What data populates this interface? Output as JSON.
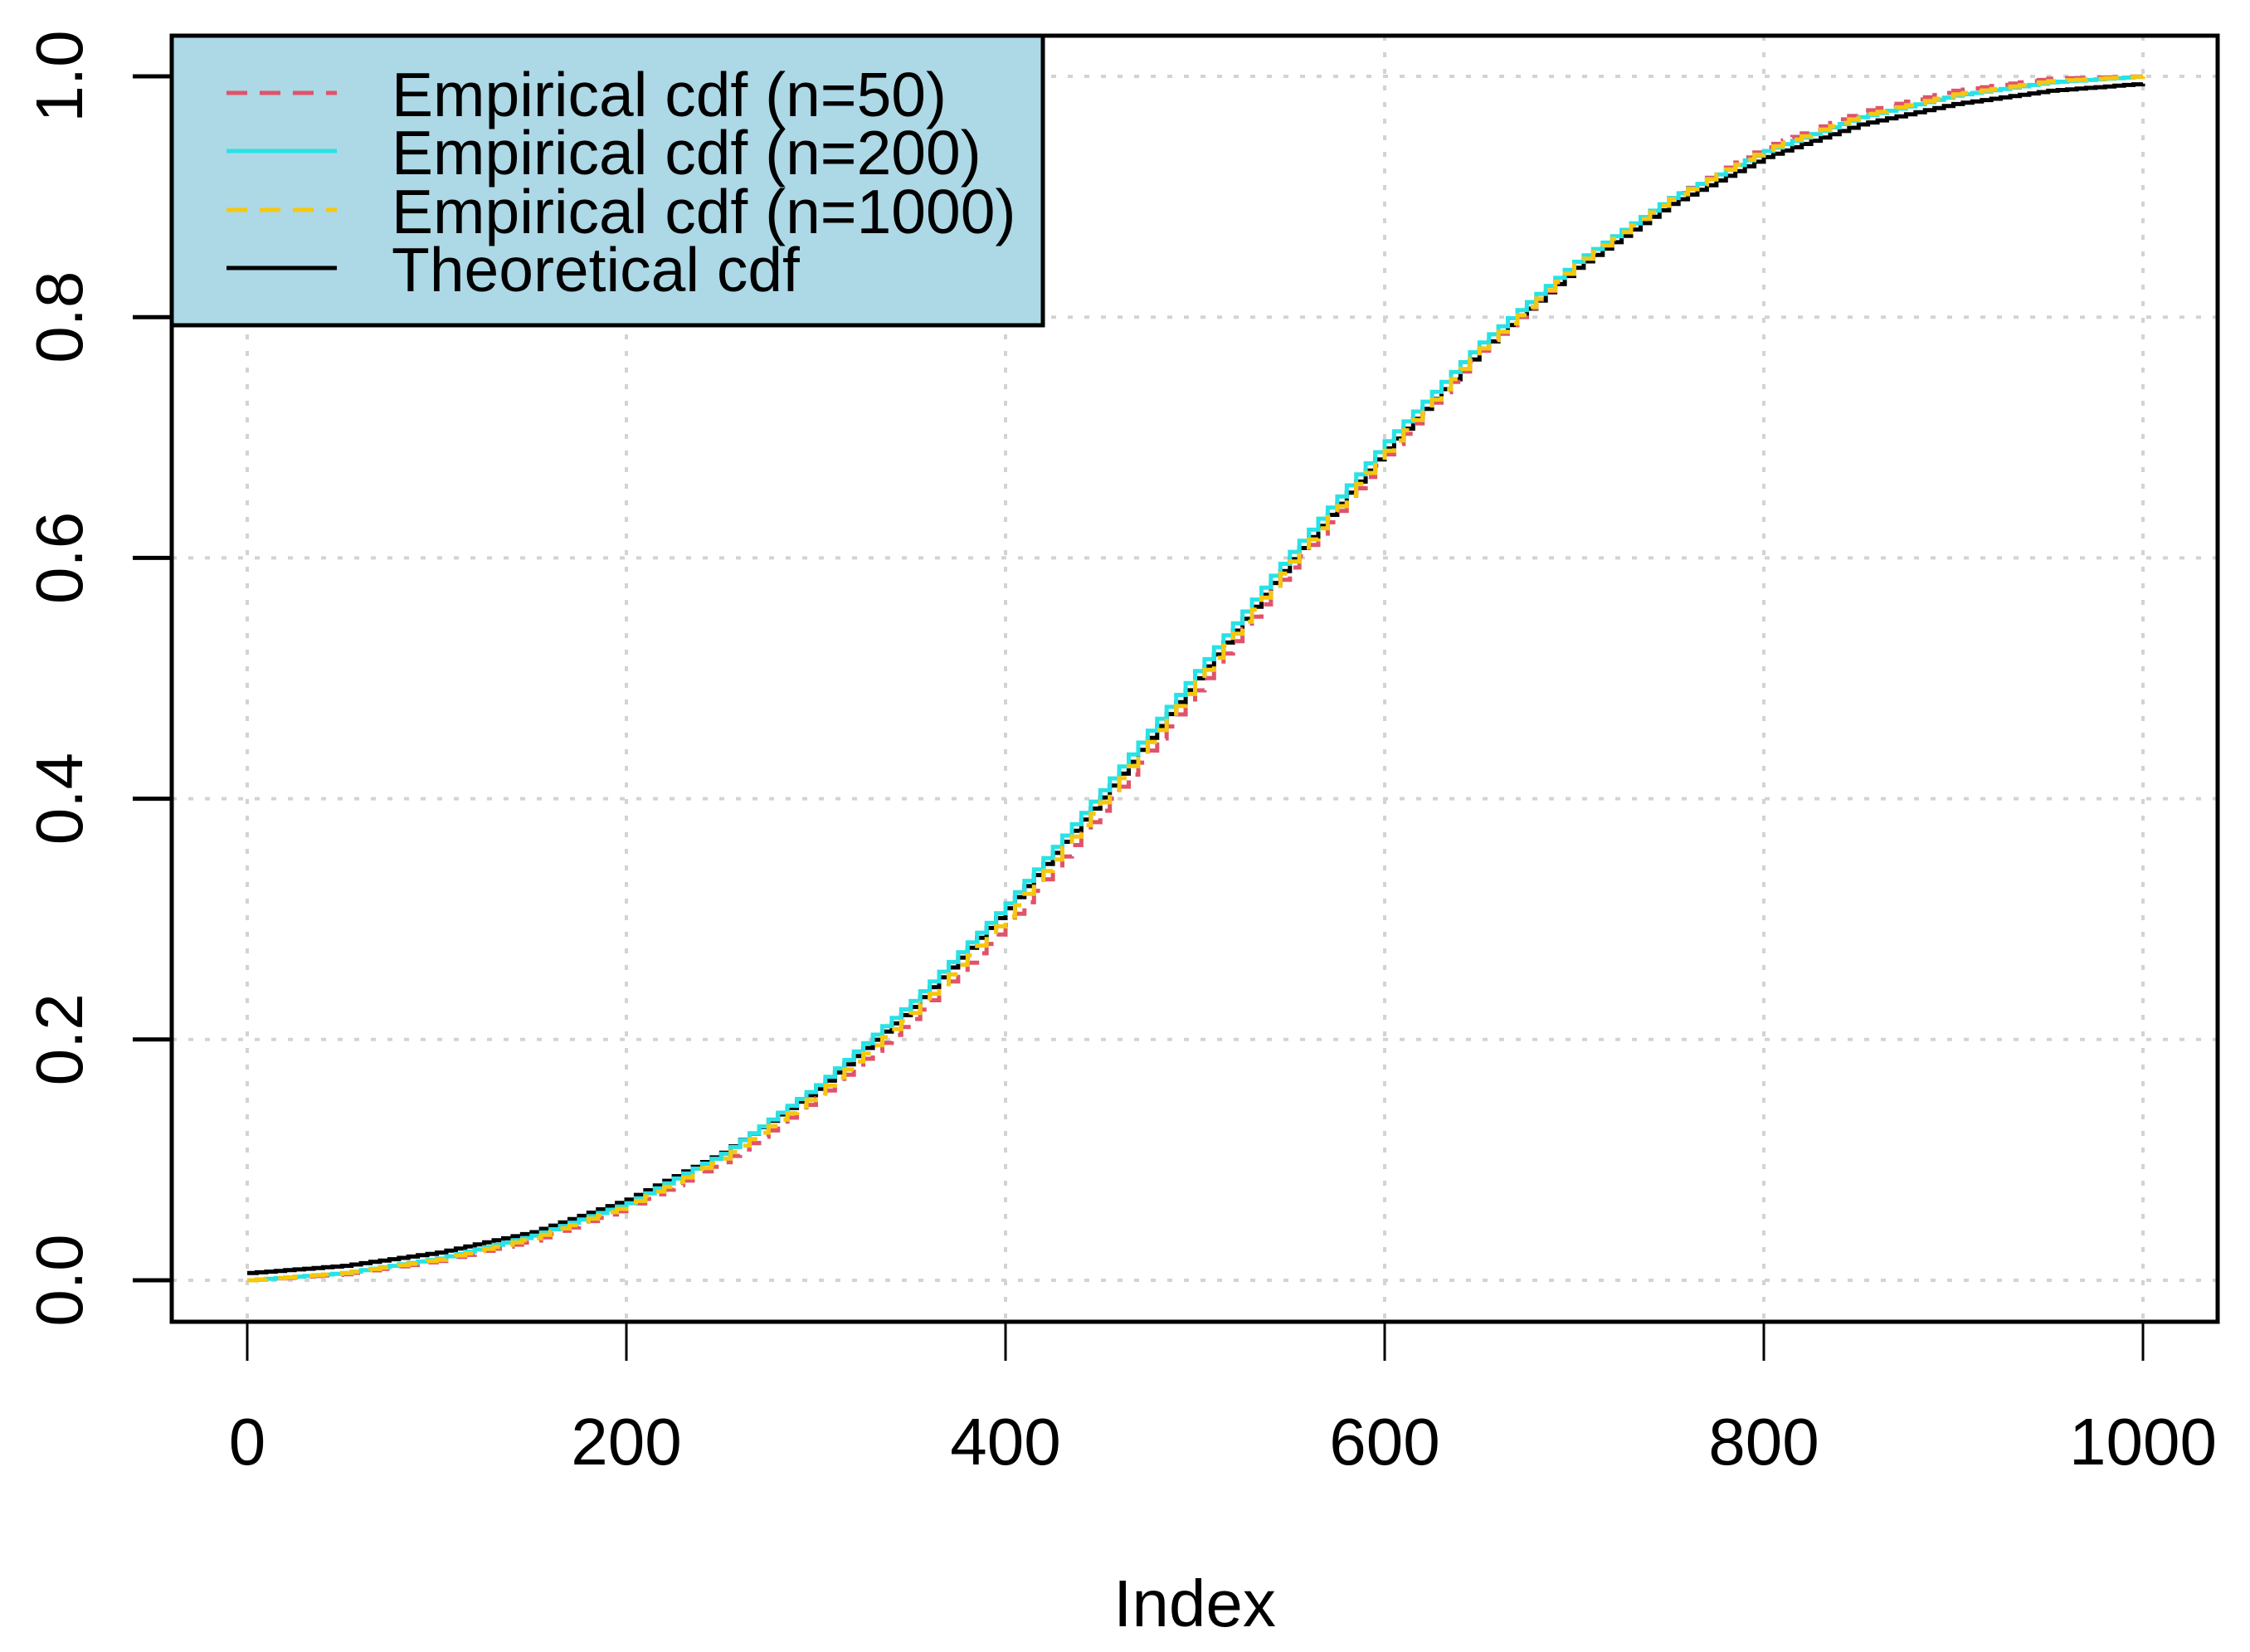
{
  "chart_data": {
    "type": "line",
    "step": true,
    "title": "",
    "xlabel": "Index",
    "ylabel": "",
    "xlim": [
      0,
      1000
    ],
    "ylim": [
      0,
      1
    ],
    "xticks": [
      0,
      200,
      400,
      600,
      800,
      1000
    ],
    "xtick_labels": [
      "0",
      "200",
      "400",
      "600",
      "800",
      "1000"
    ],
    "yticks": [
      0.0,
      0.2,
      0.4,
      0.6,
      0.8,
      1.0
    ],
    "ytick_labels": [
      "0.0",
      "0.2",
      "0.4",
      "0.6",
      "0.8",
      "1.0"
    ],
    "grid": true,
    "grid_style": "dotted",
    "grid_color": "#d3d3d3",
    "legend_position": "topleft",
    "legend_background": "#add8e6",
    "x": [
      0,
      50,
      100,
      150,
      200,
      250,
      300,
      350,
      400,
      450,
      500,
      550,
      600,
      650,
      700,
      750,
      800,
      850,
      900,
      950,
      1000
    ],
    "series": [
      {
        "name": "Empirical cdf (n=50)",
        "color": "#df536b",
        "dash": "dashed",
        "values": [
          0.0,
          0.005,
          0.016,
          0.033,
          0.06,
          0.098,
          0.151,
          0.217,
          0.295,
          0.39,
          0.49,
          0.592,
          0.686,
          0.772,
          0.843,
          0.899,
          0.941,
          0.97,
          0.988,
          0.998,
          1.0
        ]
      },
      {
        "name": "Empirical cdf (n=200)",
        "color": "#28e2e5",
        "dash": "solid",
        "values": [
          0.0,
          0.006,
          0.018,
          0.037,
          0.064,
          0.105,
          0.162,
          0.232,
          0.313,
          0.407,
          0.506,
          0.605,
          0.697,
          0.779,
          0.846,
          0.899,
          0.938,
          0.966,
          0.984,
          0.995,
          1.0
        ]
      },
      {
        "name": "Empirical cdf (n=1000)",
        "color": "#f5c710",
        "dash": "dashed",
        "values": [
          0.0,
          0.006,
          0.017,
          0.035,
          0.062,
          0.101,
          0.155,
          0.222,
          0.302,
          0.397,
          0.497,
          0.597,
          0.689,
          0.774,
          0.843,
          0.898,
          0.939,
          0.967,
          0.985,
          0.996,
          1.0
        ]
      },
      {
        "name": "Theoretical cdf",
        "color": "#000000",
        "dash": "solid",
        "values": [
          0.006,
          0.012,
          0.023,
          0.04,
          0.067,
          0.106,
          0.159,
          0.227,
          0.309,
          0.401,
          0.5,
          0.599,
          0.691,
          0.773,
          0.841,
          0.894,
          0.933,
          0.96,
          0.977,
          0.988,
          0.994
        ]
      }
    ]
  },
  "legend": {
    "items": [
      {
        "label": "Empirical cdf (n=50)",
        "color": "#df536b",
        "dash": "dashed"
      },
      {
        "label": "Empirical cdf (n=200)",
        "color": "#28e2e5",
        "dash": "solid"
      },
      {
        "label": "Empirical cdf (n=1000)",
        "color": "#f5c710",
        "dash": "dashed"
      },
      {
        "label": "Theoretical cdf",
        "color": "#000000",
        "dash": "solid"
      }
    ]
  },
  "axes": {
    "x_title": "Index"
  }
}
